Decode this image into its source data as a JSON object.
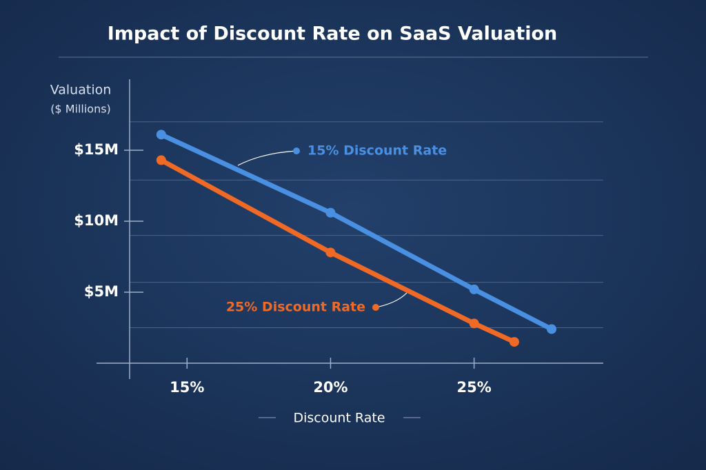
{
  "chart_data": {
    "type": "line",
    "title": "Impact of Discount Rate on SaaS Valuation",
    "ylabel": [
      "Valuation",
      "($ Millions)"
    ],
    "xlabel": "Discount Rate",
    "xlim": [
      13,
      29.5
    ],
    "ylim": [
      0,
      20
    ],
    "xticks": [
      {
        "value": 15,
        "label": "15%"
      },
      {
        "value": 20,
        "label": "20%"
      },
      {
        "value": 25,
        "label": "25%"
      }
    ],
    "yticks": [
      {
        "value": 5,
        "label": "$5M"
      },
      {
        "value": 10,
        "label": "$10M"
      },
      {
        "value": 15,
        "label": "$15M"
      }
    ],
    "minor_yticks": [
      2.5,
      5.7,
      9,
      12.9,
      17
    ],
    "grid": true,
    "series": [
      {
        "name": "15% Discount Rate",
        "color": "#4a90e2",
        "x": [
          14.1,
          20,
          25,
          27.7
        ],
        "values": [
          16.1,
          10.6,
          5.2,
          2.4
        ]
      },
      {
        "name": "25% Discount Rate",
        "color": "#f06a25",
        "x": [
          14.1,
          20,
          25,
          26.4
        ],
        "values": [
          14.3,
          7.8,
          2.8,
          1.5
        ]
      }
    ]
  }
}
